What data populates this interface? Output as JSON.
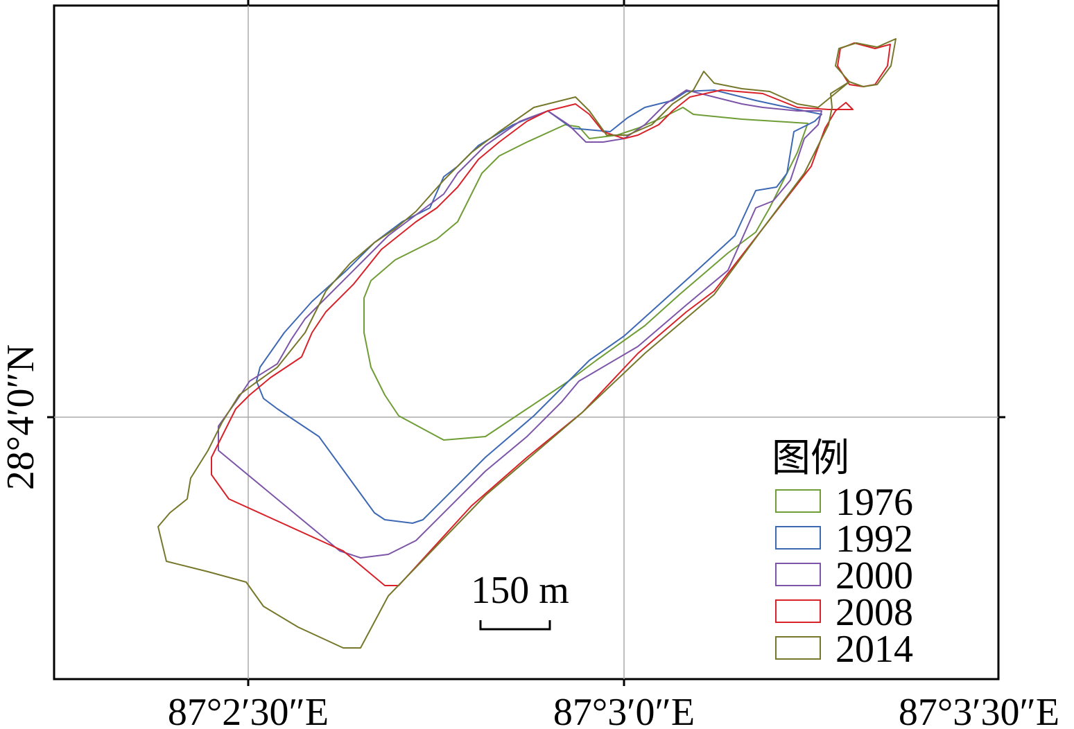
{
  "map": {
    "x_labels": [
      "87°2′30″E",
      "87°3′0″E",
      "87°3′30″E"
    ],
    "y_labels": [
      "28°4′0″N"
    ],
    "legend": {
      "title": "图例",
      "items": [
        {
          "label": "1976",
          "color": "#6f9d35"
        },
        {
          "label": "1992",
          "color": "#3d68b4"
        },
        {
          "label": "2000",
          "color": "#7d55a8"
        },
        {
          "label": "2008",
          "color": "#d82128"
        },
        {
          "label": "2014",
          "color": "#76772a"
        }
      ]
    },
    "scale_bar": {
      "label": "150 m"
    }
  }
}
